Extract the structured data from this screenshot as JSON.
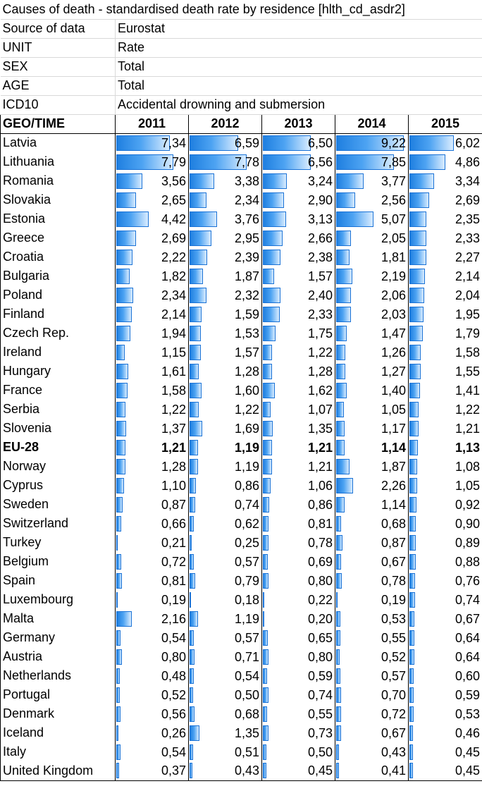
{
  "sheet": {
    "title": "Causes of death - standardised death rate by residence [hlth_cd_asdr2]",
    "meta": [
      {
        "label": "Source of data",
        "value": "Eurostat"
      },
      {
        "label": "UNIT",
        "value": "Rate"
      },
      {
        "label": "SEX",
        "value": "Total"
      },
      {
        "label": "AGE",
        "value": "Total"
      },
      {
        "label": "ICD10",
        "value": "Accidental drowning and submersion"
      }
    ],
    "header": {
      "geo": "GEO/TIME",
      "years": [
        "2011",
        "2012",
        "2013",
        "2014",
        "2015"
      ]
    },
    "bar_max": 9.22,
    "bar_color": "#3d97ee",
    "rows": [
      {
        "geo": "Latvia",
        "values": [
          "7,34",
          "6,59",
          "6,50",
          "9,22",
          "6,02"
        ]
      },
      {
        "geo": "Lithuania",
        "values": [
          "7,79",
          "7,78",
          "6,56",
          "7,85",
          "4,86"
        ]
      },
      {
        "geo": "Romania",
        "values": [
          "3,56",
          "3,38",
          "3,24",
          "3,77",
          "3,34"
        ]
      },
      {
        "geo": "Slovakia",
        "values": [
          "2,65",
          "2,34",
          "2,90",
          "2,56",
          "2,69"
        ]
      },
      {
        "geo": "Estonia",
        "values": [
          "4,42",
          "3,76",
          "3,13",
          "5,07",
          "2,35"
        ]
      },
      {
        "geo": "Greece",
        "values": [
          "2,69",
          "2,95",
          "2,66",
          "2,05",
          "2,33"
        ]
      },
      {
        "geo": "Croatia",
        "values": [
          "2,22",
          "2,39",
          "2,38",
          "1,81",
          "2,27"
        ]
      },
      {
        "geo": "Bulgaria",
        "values": [
          "1,82",
          "1,87",
          "1,57",
          "2,19",
          "2,14"
        ]
      },
      {
        "geo": "Poland",
        "values": [
          "2,34",
          "2,32",
          "2,40",
          "2,06",
          "2,04"
        ]
      },
      {
        "geo": "Finland",
        "values": [
          "2,14",
          "1,59",
          "2,33",
          "2,03",
          "1,95"
        ]
      },
      {
        "geo": "Czech Rep.",
        "values": [
          "1,94",
          "1,53",
          "1,75",
          "1,47",
          "1,79"
        ]
      },
      {
        "geo": "Ireland",
        "values": [
          "1,15",
          "1,57",
          "1,22",
          "1,26",
          "1,58"
        ]
      },
      {
        "geo": "Hungary",
        "values": [
          "1,61",
          "1,28",
          "1,28",
          "1,27",
          "1,55"
        ]
      },
      {
        "geo": "France",
        "values": [
          "1,58",
          "1,60",
          "1,62",
          "1,40",
          "1,41"
        ]
      },
      {
        "geo": "Serbia",
        "values": [
          "1,22",
          "1,22",
          "1,07",
          "1,05",
          "1,22"
        ]
      },
      {
        "geo": "Slovenia",
        "values": [
          "1,37",
          "1,69",
          "1,35",
          "1,17",
          "1,21"
        ]
      },
      {
        "geo": "EU-28",
        "values": [
          "1,21",
          "1,19",
          "1,21",
          "1,14",
          "1,13"
        ],
        "bold": true
      },
      {
        "geo": "Norway",
        "values": [
          "1,28",
          "1,19",
          "1,21",
          "1,87",
          "1,08"
        ]
      },
      {
        "geo": "Cyprus",
        "values": [
          "1,10",
          "0,86",
          "1,06",
          "2,26",
          "1,05"
        ]
      },
      {
        "geo": "Sweden",
        "values": [
          "0,87",
          "0,74",
          "0,86",
          "1,14",
          "0,92"
        ]
      },
      {
        "geo": "Switzerland",
        "values": [
          "0,66",
          "0,62",
          "0,81",
          "0,68",
          "0,90"
        ]
      },
      {
        "geo": "Turkey",
        "values": [
          "0,21",
          "0,25",
          "0,78",
          "0,87",
          "0,89"
        ]
      },
      {
        "geo": "Belgium",
        "values": [
          "0,72",
          "0,57",
          "0,69",
          "0,67",
          "0,88"
        ]
      },
      {
        "geo": "Spain",
        "values": [
          "0,81",
          "0,79",
          "0,80",
          "0,78",
          "0,76"
        ]
      },
      {
        "geo": "Luxembourg",
        "values": [
          "0,19",
          "0,18",
          "0,22",
          "0,19",
          "0,74"
        ]
      },
      {
        "geo": "Malta",
        "values": [
          "2,16",
          "1,19",
          "0,20",
          "0,53",
          "0,67"
        ]
      },
      {
        "geo": "Germany",
        "values": [
          "0,54",
          "0,57",
          "0,65",
          "0,55",
          "0,64"
        ]
      },
      {
        "geo": "Austria",
        "values": [
          "0,80",
          "0,71",
          "0,80",
          "0,52",
          "0,64"
        ]
      },
      {
        "geo": "Netherlands",
        "values": [
          "0,48",
          "0,54",
          "0,59",
          "0,57",
          "0,60"
        ]
      },
      {
        "geo": "Portugal",
        "values": [
          "0,52",
          "0,50",
          "0,74",
          "0,70",
          "0,59"
        ]
      },
      {
        "geo": "Denmark",
        "values": [
          "0,56",
          "0,68",
          "0,55",
          "0,72",
          "0,53"
        ]
      },
      {
        "geo": "Iceland",
        "values": [
          "0,26",
          "1,35",
          "0,73",
          "0,67",
          "0,46"
        ]
      },
      {
        "geo": "Italy",
        "values": [
          "0,54",
          "0,51",
          "0,50",
          "0,43",
          "0,45"
        ]
      },
      {
        "geo": "United Kingdom",
        "values": [
          "0,37",
          "0,43",
          "0,45",
          "0,41",
          "0,45"
        ]
      }
    ]
  }
}
